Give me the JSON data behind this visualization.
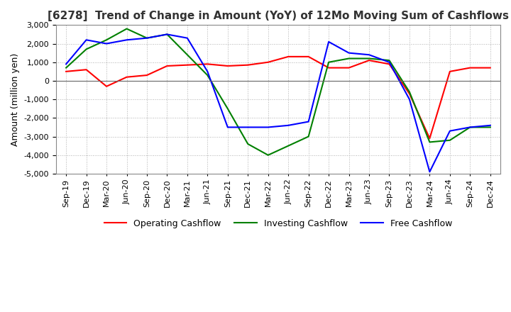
{
  "title": "[6278]  Trend of Change in Amount (YoY) of 12Mo Moving Sum of Cashflows",
  "ylabel": "Amount (million yen)",
  "ylim": [
    -5000,
    3000
  ],
  "yticks": [
    -5000,
    -4000,
    -3000,
    -2000,
    -1000,
    0,
    1000,
    2000,
    3000
  ],
  "x_labels": [
    "Sep-19",
    "Dec-19",
    "Mar-20",
    "Jun-20",
    "Sep-20",
    "Dec-20",
    "Mar-21",
    "Jun-21",
    "Sep-21",
    "Dec-21",
    "Mar-22",
    "Jun-22",
    "Sep-22",
    "Dec-22",
    "Mar-23",
    "Jun-23",
    "Sep-23",
    "Dec-23",
    "Mar-24",
    "Jun-24",
    "Sep-24",
    "Dec-24"
  ],
  "operating": [
    500,
    600,
    -300,
    200,
    300,
    800,
    850,
    900,
    800,
    850,
    1000,
    1300,
    1300,
    700,
    700,
    1100,
    900,
    -700,
    -3100,
    500,
    700,
    700
  ],
  "investing": [
    700,
    1700,
    2200,
    2800,
    2300,
    2500,
    1400,
    300,
    -1500,
    -3400,
    -4000,
    -3500,
    -3000,
    1000,
    1200,
    1200,
    1100,
    -600,
    -3300,
    -3200,
    -2500,
    -2500
  ],
  "free": [
    900,
    2200,
    2000,
    2200,
    2300,
    2500,
    2300,
    500,
    -2500,
    -2500,
    -2500,
    -2400,
    -2200,
    2100,
    1500,
    1400,
    1000,
    -1000,
    -4900,
    -2700,
    -2500,
    -2400
  ],
  "operating_color": "#ff0000",
  "investing_color": "#008000",
  "free_color": "#0000ff",
  "line_width": 1.5,
  "background_color": "#ffffff",
  "grid_color": "#b0b0b0",
  "title_color": "#333333",
  "title_fontsize": 11,
  "axis_fontsize": 9,
  "tick_fontsize": 8
}
